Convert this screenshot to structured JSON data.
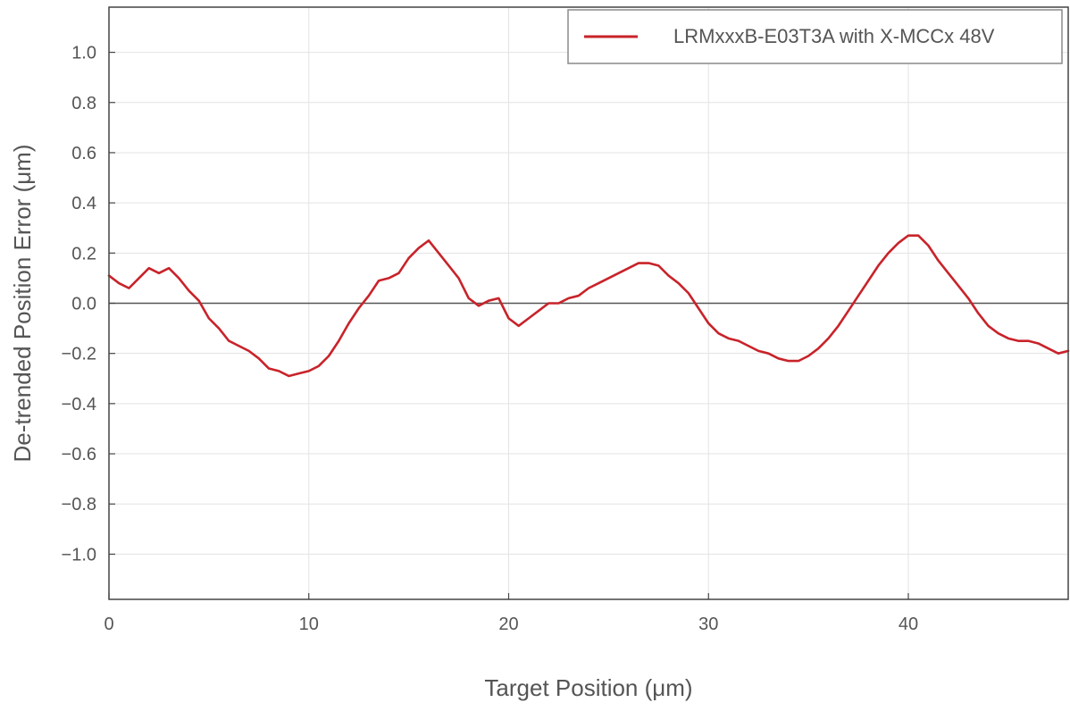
{
  "chart_data": {
    "type": "line",
    "title": "",
    "xlabel": "Target Position (μm)",
    "ylabel": "De-trended Position Error (μm)",
    "xlim": [
      0,
      48
    ],
    "ylim": [
      -1.18,
      1.18
    ],
    "x_ticks": [
      0,
      10,
      20,
      30,
      40
    ],
    "x_tick_labels": [
      "0",
      "10",
      "20",
      "30",
      "40"
    ],
    "y_ticks": [
      1.0,
      0.8,
      0.6,
      0.4,
      0.2,
      0.0,
      -0.2,
      -0.4,
      -0.6,
      -0.8,
      -1.0
    ],
    "y_tick_labels": [
      "1.0",
      "0.8",
      "0.6",
      "0.4",
      "0.2",
      "0.0",
      "−0.2",
      "−0.4",
      "−0.6",
      "−0.8",
      "−1.0"
    ],
    "grid": true,
    "zero_line": true,
    "legend_position": "top-right",
    "colors": {
      "series": "#c8232a",
      "grid": "#e3e3e3",
      "axis": "#444444",
      "zero_line": "#555555"
    },
    "series": [
      {
        "name": "LRMxxxB-E03T3A with X-MCCx 48V",
        "x": [
          0,
          0.5,
          1,
          1.5,
          2,
          2.5,
          3,
          3.5,
          4,
          4.5,
          5,
          5.5,
          6,
          6.5,
          7,
          7.5,
          8,
          8.5,
          9,
          9.5,
          10,
          10.5,
          11,
          11.5,
          12,
          12.5,
          13,
          13.5,
          14,
          14.5,
          15,
          15.5,
          16,
          16.5,
          17,
          17.5,
          18,
          18.5,
          19,
          19.5,
          20,
          20.5,
          21,
          21.5,
          22,
          22.5,
          23,
          23.5,
          24,
          24.5,
          25,
          25.5,
          26,
          26.5,
          27,
          27.5,
          28,
          28.5,
          29,
          29.5,
          30,
          30.5,
          31,
          31.5,
          32,
          32.5,
          33,
          33.5,
          34,
          34.5,
          35,
          35.5,
          36,
          36.5,
          37,
          37.5,
          38,
          38.5,
          39,
          39.5,
          40,
          40.5,
          41,
          41.5,
          42,
          42.5,
          43,
          43.5,
          44,
          44.5,
          45,
          45.5,
          46,
          46.5,
          47,
          47.5,
          48
        ],
        "y": [
          0.11,
          0.08,
          0.06,
          0.1,
          0.14,
          0.12,
          0.14,
          0.1,
          0.05,
          0.01,
          -0.06,
          -0.1,
          -0.15,
          -0.17,
          -0.19,
          -0.22,
          -0.26,
          -0.27,
          -0.29,
          -0.28,
          -0.27,
          -0.25,
          -0.21,
          -0.15,
          -0.08,
          -0.02,
          0.03,
          0.09,
          0.1,
          0.12,
          0.18,
          0.22,
          0.25,
          0.2,
          0.15,
          0.1,
          0.02,
          -0.01,
          0.01,
          0.02,
          -0.06,
          -0.09,
          -0.06,
          -0.03,
          0,
          0,
          0.02,
          0.03,
          0.06,
          0.08,
          0.1,
          0.12,
          0.14,
          0.16,
          0.16,
          0.15,
          0.11,
          0.08,
          0.04,
          -0.02,
          -0.08,
          -0.12,
          -0.14,
          -0.15,
          -0.17,
          -0.19,
          -0.2,
          -0.22,
          -0.23,
          -0.23,
          -0.21,
          -0.18,
          -0.14,
          -0.09,
          -0.03,
          0.03,
          0.09,
          0.15,
          0.2,
          0.24,
          0.27,
          0.27,
          0.23,
          0.17,
          0.12,
          0.07,
          0.02,
          -0.04,
          -0.09,
          -0.12,
          -0.14,
          -0.15,
          -0.15,
          -0.16,
          -0.18,
          -0.2,
          -0.19
        ]
      }
    ]
  }
}
